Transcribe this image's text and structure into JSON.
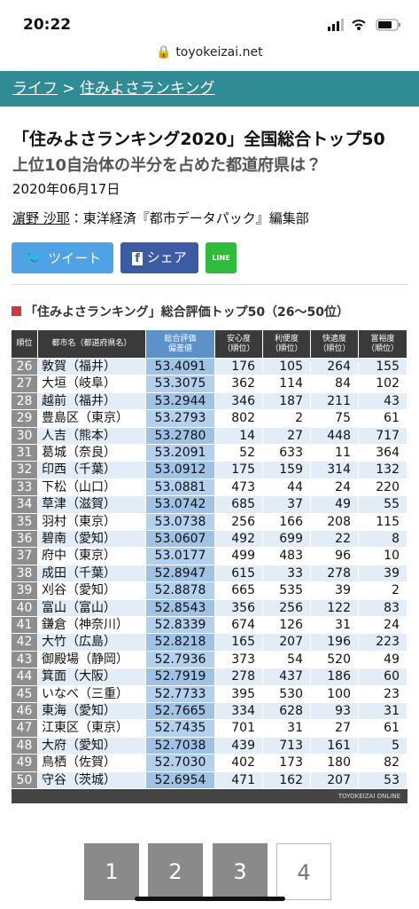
{
  "status": {
    "time": "20:22",
    "url": "toyokeizai.net"
  },
  "breadcrumb": {
    "items": [
      "ライフ",
      "住みよさランキング"
    ],
    "separator": ">"
  },
  "article": {
    "title": "「住みよさランキング2020」全国総合トップ50",
    "subtitle": "上位10自治体の半分を占めた都道府県は？",
    "date": "2020年06月17日",
    "author_name": "濵野 沙耶",
    "author_rest": "：東洋経済『都市データパック』編集部"
  },
  "buttons": {
    "tweet": "ツイート",
    "share": "シェア",
    "line": "LINE"
  },
  "table": {
    "title": "「住みよさランキング」総合評価トップ50（26〜50位）",
    "headers": [
      [
        "順位"
      ],
      [
        "都市名（都道府県名）"
      ],
      [
        "総合評価",
        "偏差値"
      ],
      [
        "安心度",
        "（順位）"
      ],
      [
        "利便度",
        "（順位）"
      ],
      [
        "快適度",
        "（順位）"
      ],
      [
        "富裕度",
        "（順位）"
      ]
    ],
    "rows": [
      [
        26,
        "敦賀（福井）",
        "53.4091",
        176,
        105,
        264,
        155
      ],
      [
        27,
        "大垣（岐阜）",
        "53.3075",
        362,
        114,
        84,
        102
      ],
      [
        28,
        "越前（福井）",
        "53.2944",
        346,
        187,
        211,
        43
      ],
      [
        29,
        "豊島区（東京）",
        "53.2793",
        802,
        2,
        75,
        61
      ],
      [
        30,
        "人吉（熊本）",
        "53.2780",
        14,
        27,
        448,
        717
      ],
      [
        31,
        "葛城（奈良）",
        "53.2091",
        52,
        633,
        11,
        364
      ],
      [
        32,
        "印西（千葉）",
        "53.0912",
        175,
        159,
        314,
        132
      ],
      [
        33,
        "下松（山口）",
        "53.0881",
        473,
        44,
        24,
        220
      ],
      [
        34,
        "草津（滋賀）",
        "53.0742",
        685,
        37,
        49,
        55
      ],
      [
        35,
        "羽村（東京）",
        "53.0738",
        256,
        166,
        208,
        115
      ],
      [
        36,
        "碧南（愛知）",
        "53.0607",
        492,
        699,
        22,
        8
      ],
      [
        37,
        "府中（東京）",
        "53.0177",
        499,
        483,
        96,
        10
      ],
      [
        38,
        "成田（千葉）",
        "52.8947",
        615,
        33,
        278,
        39
      ],
      [
        39,
        "刈谷（愛知）",
        "52.8878",
        665,
        535,
        39,
        2
      ],
      [
        40,
        "富山（富山）",
        "52.8543",
        356,
        256,
        122,
        83
      ],
      [
        41,
        "鎌倉（神奈川）",
        "52.8339",
        674,
        126,
        31,
        24
      ],
      [
        42,
        "大竹（広島）",
        "52.8218",
        165,
        207,
        196,
        223
      ],
      [
        43,
        "御殿場（静岡）",
        "52.7936",
        373,
        54,
        520,
        49
      ],
      [
        44,
        "箕面（大阪）",
        "52.7919",
        278,
        437,
        186,
        60
      ],
      [
        45,
        "いなべ（三重）",
        "52.7733",
        395,
        530,
        100,
        23
      ],
      [
        46,
        "東海（愛知）",
        "52.7665",
        334,
        628,
        93,
        31
      ],
      [
        47,
        "江東区（東京）",
        "52.7435",
        701,
        31,
        27,
        61
      ],
      [
        48,
        "大府（愛知）",
        "52.7038",
        439,
        713,
        161,
        5
      ],
      [
        49,
        "鳥栖（佐賀）",
        "52.7030",
        402,
        173,
        180,
        82
      ],
      [
        50,
        "守谷（茨城）",
        "52.6954",
        471,
        162,
        207,
        53
      ]
    ],
    "source": "TOYOKEIZAI ONLINE"
  },
  "pagination": [
    "1",
    "2",
    "3",
    "4"
  ]
}
